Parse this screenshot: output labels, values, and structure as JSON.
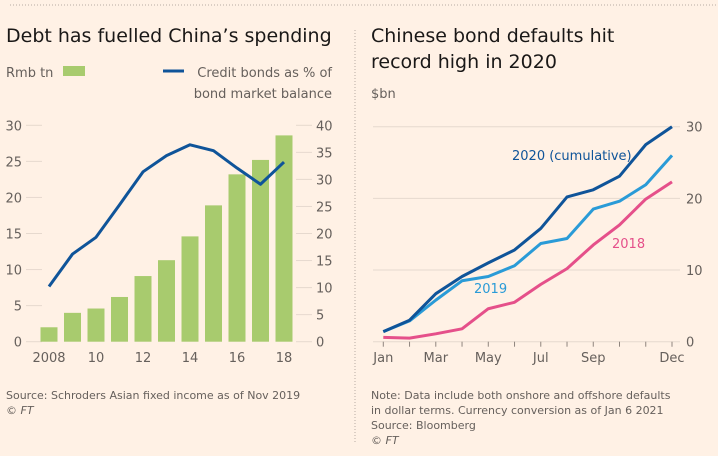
{
  "colors": {
    "background": "#FFF1E5",
    "bars": "#A8CB6E",
    "credit_line": "#0F5499",
    "s2020": "#0F5499",
    "s2019": "#2A9BD7",
    "s2018": "#E5508A"
  },
  "chart_data": [
    {
      "type": "bar",
      "title": "Debt has fuelled China’s spending",
      "legend": {
        "bars": "Rmb tn",
        "line_line1": "Credit bonds as % of",
        "line_line2": "bond market balance"
      },
      "categories": [
        "2008",
        "2009",
        "2010",
        "2011",
        "2012",
        "2013",
        "2014",
        "2015",
        "2016",
        "2017",
        "2018"
      ],
      "x_tick_labels": [
        "2008",
        "10",
        "12",
        "14",
        "16",
        "18"
      ],
      "series": [
        {
          "name": "Rmb tn",
          "axis": "left",
          "type": "bar",
          "values": [
            2.0,
            4.0,
            4.6,
            6.2,
            9.1,
            11.3,
            14.6,
            18.9,
            23.2,
            25.2,
            28.6
          ]
        },
        {
          "name": "Credit bonds as % of bond market balance",
          "axis": "right",
          "type": "line",
          "values": [
            10.2,
            16.2,
            19.3,
            25.3,
            31.4,
            34.4,
            36.4,
            35.3,
            32.1,
            29.1,
            33.2
          ]
        }
      ],
      "ylim_left": [
        0,
        30
      ],
      "yticks_left": [
        "0",
        "5",
        "10",
        "15",
        "20",
        "25",
        "30"
      ],
      "ylim_right": [
        0,
        40
      ],
      "yticks_right": [
        "0",
        "5",
        "10",
        "15",
        "20",
        "25",
        "30",
        "35",
        "40"
      ],
      "source": "Source: Schroders Asian fixed income as of Nov 2019",
      "copyright": "© FT"
    },
    {
      "type": "line",
      "title_line1": "Chinese bond defaults hit",
      "title_line2": "record high in 2020",
      "ylabel": "$bn",
      "x": [
        "Jan",
        "Feb",
        "Mar",
        "Apr",
        "May",
        "Jun",
        "Jul",
        "Aug",
        "Sep",
        "Oct",
        "Nov",
        "Dec"
      ],
      "x_tick_labels": [
        "Jan",
        "Mar",
        "May",
        "Jul",
        "Sep",
        "Dec"
      ],
      "series": [
        {
          "name": "2020 (cumulative)",
          "color_key": "s2020",
          "values": [
            1.4,
            3.0,
            6.7,
            9.1,
            11.0,
            12.8,
            15.8,
            20.2,
            21.2,
            23.1,
            27.5,
            30.0
          ]
        },
        {
          "name": "2019",
          "color_key": "s2019",
          "values": [
            1.4,
            2.9,
            5.8,
            8.5,
            9.1,
            10.6,
            13.7,
            14.4,
            18.5,
            19.6,
            21.9,
            26.0
          ]
        },
        {
          "name": "2018",
          "color_key": "s2018",
          "values": [
            0.6,
            0.5,
            1.1,
            1.8,
            4.6,
            5.5,
            8.0,
            10.2,
            13.5,
            16.3,
            19.9,
            22.3
          ]
        }
      ],
      "ylim": [
        0,
        30
      ],
      "yticks": [
        "0",
        "10",
        "20",
        "30"
      ],
      "note_lines": [
        "Note: Data include both onshore and offshore defaults",
        "in dollar terms. Currency conversion as of Jan 6 2021",
        "Source: Bloomberg"
      ],
      "copyright": "© FT"
    }
  ]
}
